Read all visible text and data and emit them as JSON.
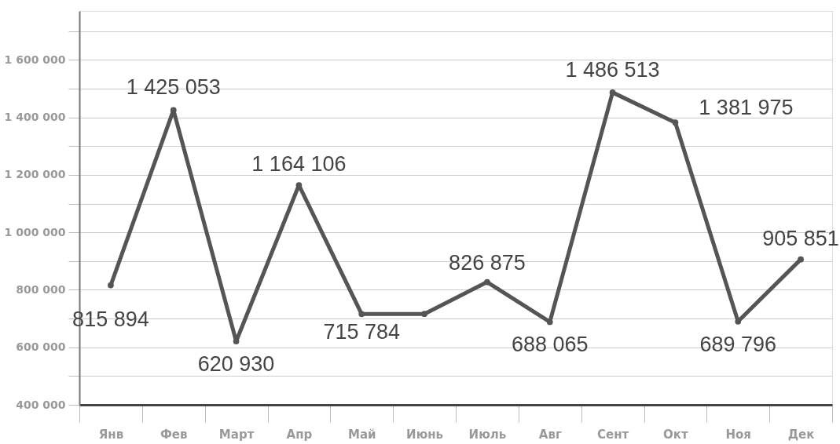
{
  "chart_data": {
    "type": "line",
    "categories": [
      "Янв",
      "Фев",
      "Март",
      "Апр",
      "Май",
      "Июнь",
      "Июль",
      "Авг",
      "Сент",
      "Окт",
      "Ноя",
      "Дек"
    ],
    "series": [
      {
        "color": "#555555",
        "values": [
          815894,
          1425053,
          620930,
          1164106,
          715784,
          716000,
          826875,
          688065,
          1486513,
          1381975,
          689796,
          905851
        ],
        "value_labels": [
          "815 894",
          "1 425 053",
          "620 930",
          "1 164 106",
          "715 784",
          null,
          "826 875",
          "688 065",
          "1 486 513",
          "1 381 975",
          "689 796",
          "905 851"
        ]
      }
    ],
    "ylim": [
      400000,
      1770000
    ],
    "yticks": [
      400000,
      {
        "value": 500000,
        "label": null
      },
      600000,
      {
        "value": 700000,
        "label": null
      },
      800000,
      {
        "value": 900000,
        "label": null
      },
      1000000,
      {
        "value": 1100000,
        "label": null
      },
      1200000,
      {
        "value": 1300000,
        "label": null
      },
      1400000,
      {
        "value": 1500000,
        "label": null
      },
      1600000,
      {
        "value": 1700000,
        "label": null
      }
    ],
    "grid": "y",
    "marker": "circle",
    "line_style": "solid"
  }
}
